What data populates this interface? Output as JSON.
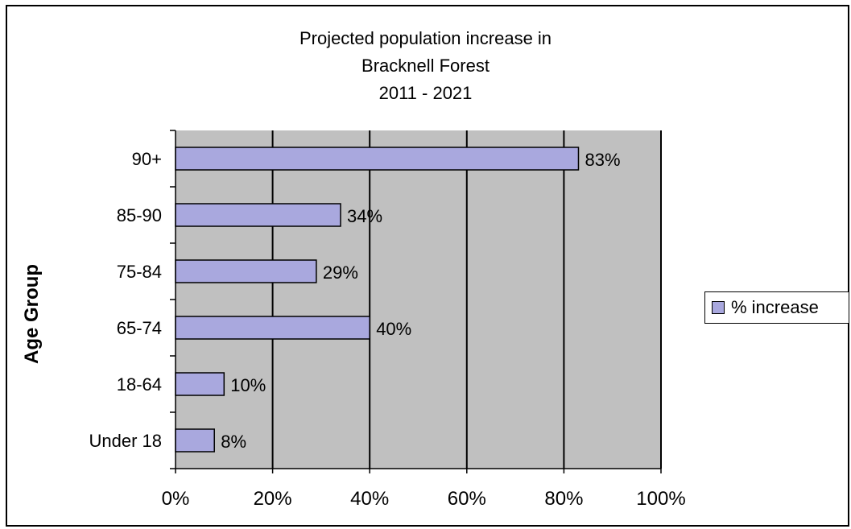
{
  "chart_data": {
    "type": "bar",
    "orientation": "horizontal",
    "title_lines": [
      "Projected population increase in",
      "Bracknell Forest",
      "2011 - 2021"
    ],
    "ylabel": "Age Group",
    "xlabel": "",
    "categories": [
      "90+",
      "85-90",
      "75-84",
      "65-74",
      "18-64",
      "Under 18"
    ],
    "series": [
      {
        "name": "% increase",
        "values": [
          83,
          34,
          29,
          40,
          10,
          8
        ]
      }
    ],
    "data_labels": [
      "83%",
      "34%",
      "29%",
      "40%",
      "10%",
      "8%"
    ],
    "x_ticks": [
      "0%",
      "20%",
      "40%",
      "60%",
      "80%",
      "100%"
    ],
    "xlim": [
      0,
      100
    ],
    "grid": "vertical",
    "legend_position": "right",
    "colors": {
      "bar": "#a9a8de",
      "plot_bg": "#c0c0c0",
      "grid": "#000000"
    }
  }
}
